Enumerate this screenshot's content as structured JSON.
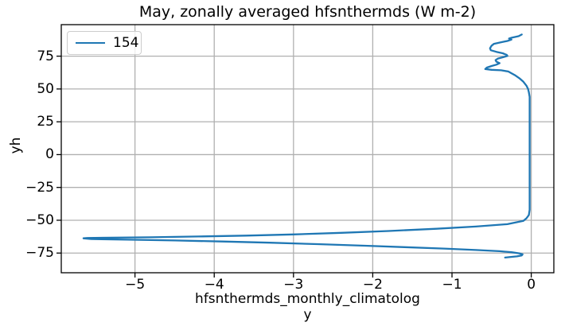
{
  "figure": {
    "title": "May, zonally averaged hfsnthermds (W m-2)",
    "xlabel_line1": "hfsnthermds_monthly_climatolog",
    "xlabel_line2": "y",
    "ylabel": "yh",
    "legend": {
      "label": "154"
    }
  },
  "colors": {
    "line": "#1f77b4",
    "grid": "#b0b0b0",
    "spine": "#000000",
    "tick": "#000000",
    "legend_border": "#cccccc",
    "background": "#ffffff"
  },
  "chart_data": {
    "type": "line",
    "title": "May, zonally averaged hfsnthermds (W m-2)",
    "xlabel": "hfsnthermds_monthly_climatology",
    "ylabel": "yh",
    "grid": true,
    "legend_position": "upper left",
    "legend_entries": [
      "154"
    ],
    "xlim": [
      -5.93,
      0.285
    ],
    "ylim": [
      -90,
      99
    ],
    "xticks": {
      "values": [
        -5,
        -4,
        -3,
        -2,
        -1,
        0
      ],
      "labels": [
        "−5",
        "−4",
        "−3",
        "−2",
        "−1",
        "0"
      ]
    },
    "yticks": {
      "values": [
        75,
        50,
        25,
        0,
        -25,
        -50,
        -75
      ],
      "labels": [
        "75",
        "50",
        "25",
        "0",
        "−25",
        "−50",
        "−75"
      ]
    },
    "series": [
      {
        "name": "154",
        "color": "#1f77b4",
        "x_is": "hfsnthermds value (W m-2)",
        "y_is": "yh latitude",
        "points": [
          [
            -0.12,
            91.5
          ],
          [
            -0.16,
            90.2
          ],
          [
            -0.24,
            89.2
          ],
          [
            -0.28,
            88.4
          ],
          [
            -0.25,
            87.6
          ],
          [
            -0.3,
            86.6
          ],
          [
            -0.38,
            85.6
          ],
          [
            -0.47,
            84.4
          ],
          [
            -0.5,
            83.0
          ],
          [
            -0.52,
            81.0
          ],
          [
            -0.51,
            79.5
          ],
          [
            -0.44,
            78.3
          ],
          [
            -0.36,
            77.2
          ],
          [
            -0.31,
            76.0
          ],
          [
            -0.3,
            75.2
          ],
          [
            -0.35,
            74.3
          ],
          [
            -0.42,
            73.2
          ],
          [
            -0.45,
            72.0
          ],
          [
            -0.44,
            70.8
          ],
          [
            -0.4,
            69.7
          ],
          [
            -0.44,
            68.5
          ],
          [
            -0.5,
            67.5
          ],
          [
            -0.56,
            66.3
          ],
          [
            -0.58,
            65.2
          ],
          [
            -0.5,
            64.6
          ],
          [
            -0.38,
            64.2
          ],
          [
            -0.29,
            63.3
          ],
          [
            -0.25,
            62.0
          ],
          [
            -0.2,
            60.3
          ],
          [
            -0.15,
            58.2
          ],
          [
            -0.1,
            55.5
          ],
          [
            -0.06,
            52.5
          ],
          [
            -0.04,
            50.0
          ],
          [
            -0.03,
            47.5
          ],
          [
            -0.02,
            44.0
          ],
          [
            -0.02,
            35.0
          ],
          [
            -0.02,
            25.0
          ],
          [
            -0.02,
            15.0
          ],
          [
            -0.02,
            5.0
          ],
          [
            -0.02,
            -5.0
          ],
          [
            -0.02,
            -15.0
          ],
          [
            -0.02,
            -25.0
          ],
          [
            -0.02,
            -35.0
          ],
          [
            -0.02,
            -42.0
          ],
          [
            -0.03,
            -46.0
          ],
          [
            -0.06,
            -48.5
          ],
          [
            -0.1,
            -50.5
          ],
          [
            -0.3,
            -53.0
          ],
          [
            -0.7,
            -54.8
          ],
          [
            -1.2,
            -56.5
          ],
          [
            -1.8,
            -58.2
          ],
          [
            -2.4,
            -59.6
          ],
          [
            -3.0,
            -60.8
          ],
          [
            -3.6,
            -61.7
          ],
          [
            -4.2,
            -62.4
          ],
          [
            -4.8,
            -63.0
          ],
          [
            -5.3,
            -63.3
          ],
          [
            -5.6,
            -63.5
          ],
          [
            -5.65,
            -63.8
          ],
          [
            -5.55,
            -64.3
          ],
          [
            -5.1,
            -64.8
          ],
          [
            -4.5,
            -65.4
          ],
          [
            -3.9,
            -66.2
          ],
          [
            -3.3,
            -67.1
          ],
          [
            -2.7,
            -68.2
          ],
          [
            -2.1,
            -69.4
          ],
          [
            -1.6,
            -70.5
          ],
          [
            -1.1,
            -71.6
          ],
          [
            -0.7,
            -72.7
          ],
          [
            -0.4,
            -73.6
          ],
          [
            -0.25,
            -74.4
          ],
          [
            -0.15,
            -75.2
          ],
          [
            -0.11,
            -76.0
          ],
          [
            -0.12,
            -76.8
          ],
          [
            -0.18,
            -77.5
          ],
          [
            -0.28,
            -78.1
          ],
          [
            -0.33,
            -78.4
          ]
        ]
      }
    ]
  }
}
